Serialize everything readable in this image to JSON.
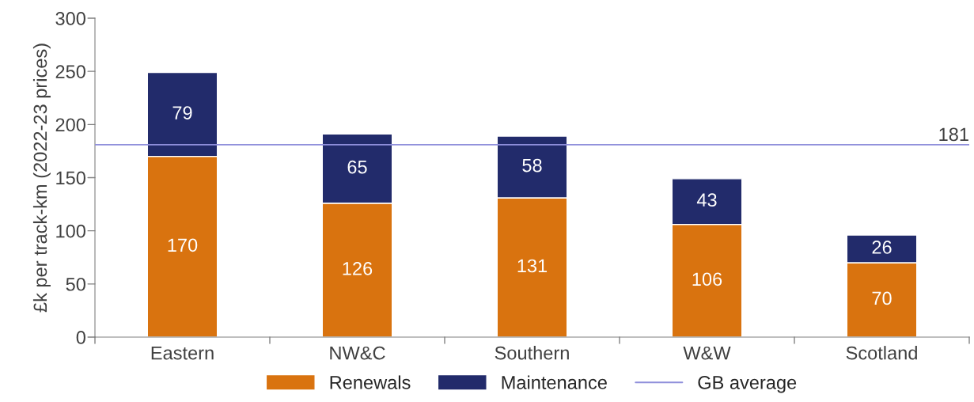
{
  "chart_data": {
    "type": "bar",
    "stacked": true,
    "ylabel": "£k per track-km (2022-23 prices)",
    "categories": [
      "Eastern",
      "NW&C",
      "Southern",
      "W&W",
      "Scotland"
    ],
    "series": [
      {
        "name": "Renewals",
        "color": "#d9730f",
        "values": [
          170,
          126,
          131,
          106,
          70
        ]
      },
      {
        "name": "Maintenance",
        "color": "#222b6b",
        "values": [
          79,
          65,
          58,
          43,
          26
        ]
      }
    ],
    "ylim": [
      0,
      300
    ],
    "yticks": [
      0,
      50,
      100,
      150,
      200,
      250,
      300
    ],
    "ref_lines": [
      {
        "axis": "y",
        "value": 181,
        "label": "GB average",
        "color": "#8f8fdb",
        "line_style": "solid"
      }
    ],
    "annotations": [
      {
        "text": "181",
        "y": 181
      }
    ],
    "data_labels": true,
    "legend": "bottom",
    "grid": false
  }
}
